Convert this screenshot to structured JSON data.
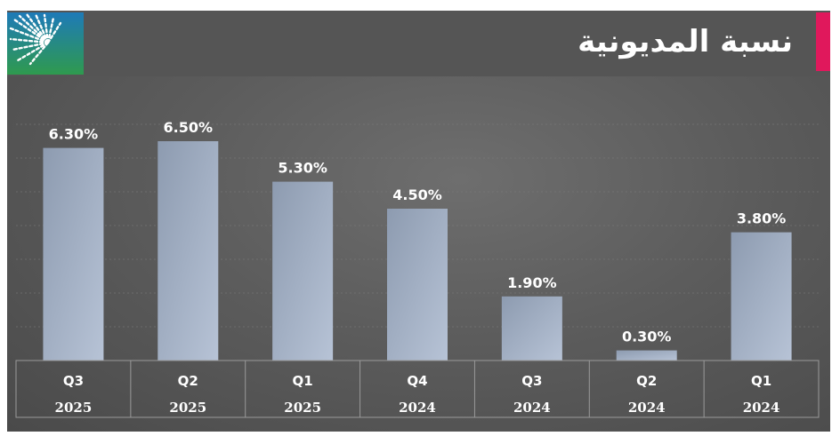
{
  "title": "نسبة المديونية",
  "colors": {
    "accent": "#e0185c",
    "bar_top": "#8d9bb0",
    "bar_bottom": "#b7c3d6",
    "logo_bg_top": "#1e7ab8",
    "logo_bg_bottom": "#2f9a4e"
  },
  "logo_icon": "aramco-logo-icon",
  "chart_data": {
    "type": "bar",
    "categories": [
      "Q3 2025",
      "Q2 2025",
      "Q1 2025",
      "Q4 2024",
      "Q3 2024",
      "Q2 2024",
      "Q1 2024"
    ],
    "quarters": [
      "Q3",
      "Q2",
      "Q1",
      "Q4",
      "Q3",
      "Q2",
      "Q1"
    ],
    "years": [
      "2025",
      "2025",
      "2025",
      "2024",
      "2024",
      "2024",
      "2024"
    ],
    "values": [
      6.3,
      6.5,
      5.3,
      4.5,
      1.9,
      0.3,
      3.8
    ],
    "value_labels": [
      "6.30%",
      "6.50%",
      "5.30%",
      "4.50%",
      "1.90%",
      "0.30%",
      "3.80%"
    ],
    "ylim": [
      0,
      7
    ],
    "grid": true,
    "legend": "none"
  }
}
